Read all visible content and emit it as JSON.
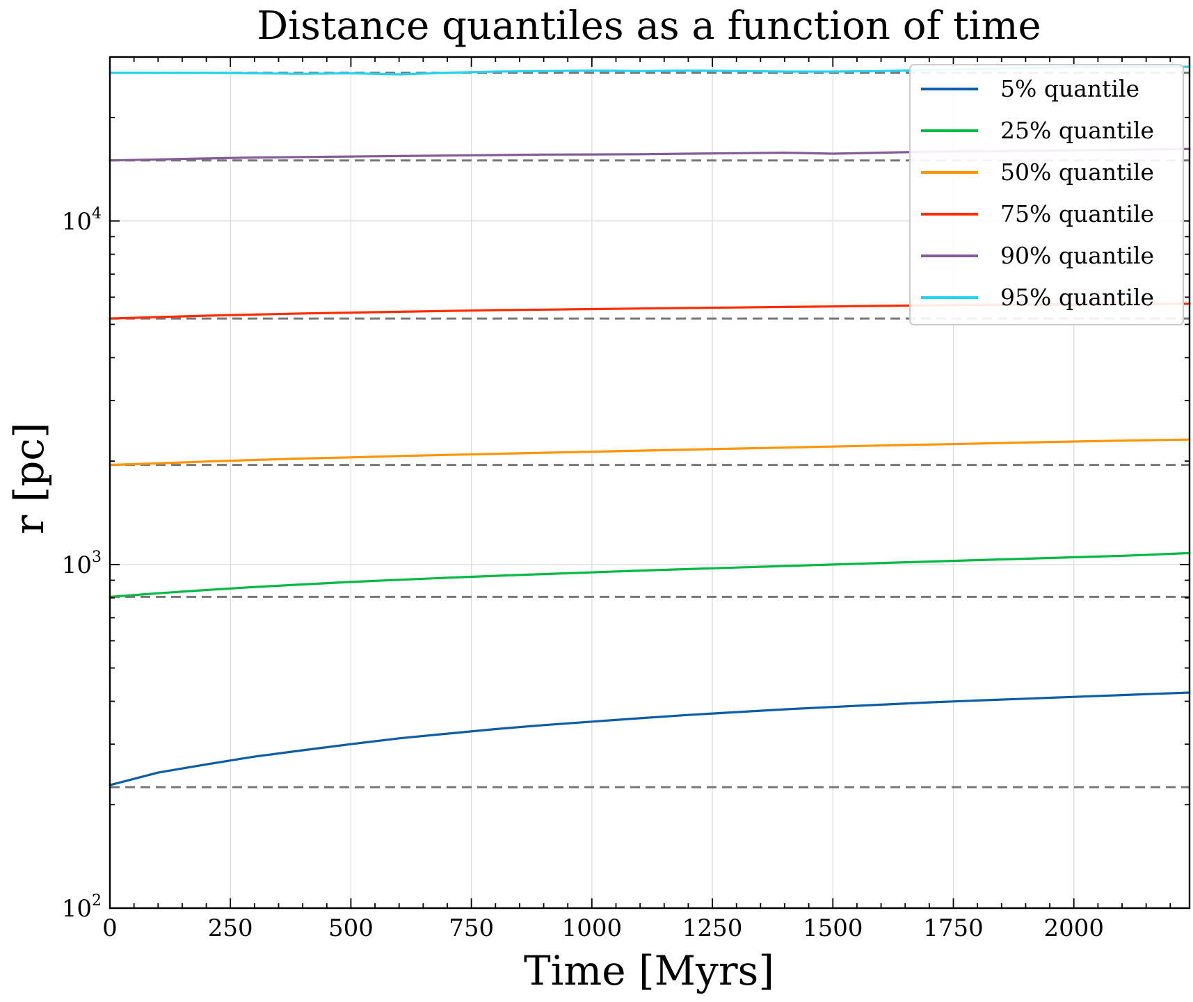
{
  "chart_data": {
    "type": "line",
    "title": "Distance quantiles as a function of time",
    "xlabel": "Time [Myrs]",
    "ylabel": "r [pc]",
    "xlim": [
      0,
      2240
    ],
    "ylim": [
      100,
      30000
    ],
    "yscale": "log",
    "grid": true,
    "legend_position": "top-right",
    "x_ticks": [
      "0",
      "250",
      "500",
      "750",
      "1000",
      "1250",
      "1500",
      "1750",
      "2000"
    ],
    "x_tick_values": [
      0,
      250,
      500,
      750,
      1000,
      1250,
      1500,
      1750,
      2000
    ],
    "y_ticks": [
      {
        "value": 100,
        "base": "10",
        "exp": "2"
      },
      {
        "value": 1000,
        "base": "10",
        "exp": "3"
      },
      {
        "value": 10000,
        "base": "10",
        "exp": "4"
      }
    ],
    "reference_lines": [
      {
        "color": "#777777",
        "y": 225
      },
      {
        "color": "#777777",
        "y": 805
      },
      {
        "color": "#777777",
        "y": 1950
      },
      {
        "color": "#777777",
        "y": 5200
      },
      {
        "color": "#777777",
        "y": 15000
      },
      {
        "color": "#777777",
        "y": 27000
      }
    ],
    "series": [
      {
        "name": "5% quantile",
        "color": "#0C5DA5",
        "x": [
          0,
          100,
          200,
          300,
          400,
          500,
          600,
          700,
          800,
          900,
          1000,
          1100,
          1200,
          1300,
          1400,
          1500,
          1600,
          1700,
          1800,
          1900,
          2000,
          2100,
          2240
        ],
        "y": [
          228,
          248,
          262,
          276,
          288,
          300,
          312,
          322,
          332,
          341,
          349,
          357,
          365,
          372,
          379,
          385,
          391,
          397,
          402,
          407,
          412,
          417,
          424
        ]
      },
      {
        "name": "25% quantile",
        "color": "#00B945",
        "x": [
          0,
          100,
          200,
          300,
          400,
          500,
          600,
          700,
          800,
          900,
          1000,
          1100,
          1200,
          1300,
          1400,
          1500,
          1600,
          1700,
          1800,
          1900,
          2000,
          2100,
          2240
        ],
        "y": [
          805,
          825,
          843,
          860,
          875,
          890,
          903,
          915,
          927,
          938,
          949,
          960,
          970,
          980,
          990,
          1000,
          1010,
          1020,
          1030,
          1040,
          1050,
          1060,
          1080
        ]
      },
      {
        "name": "50% quantile",
        "color": "#FF9500",
        "x": [
          0,
          100,
          200,
          300,
          400,
          500,
          600,
          700,
          800,
          900,
          1000,
          1100,
          1200,
          1300,
          1400,
          1500,
          1600,
          1700,
          1800,
          1900,
          2000,
          2100,
          2240
        ],
        "y": [
          1950,
          1970,
          1995,
          2015,
          2035,
          2050,
          2070,
          2085,
          2100,
          2115,
          2130,
          2145,
          2160,
          2175,
          2190,
          2205,
          2220,
          2235,
          2250,
          2265,
          2280,
          2295,
          2310
        ]
      },
      {
        "name": "75% quantile",
        "color": "#FF2C00",
        "x": [
          0,
          100,
          200,
          300,
          400,
          500,
          600,
          700,
          800,
          900,
          1000,
          1100,
          1200,
          1300,
          1400,
          1500,
          1600,
          1700,
          1800,
          1900,
          2000,
          2100,
          2240
        ],
        "y": [
          5200,
          5250,
          5300,
          5340,
          5380,
          5410,
          5440,
          5470,
          5500,
          5520,
          5540,
          5560,
          5580,
          5600,
          5620,
          5640,
          5660,
          5680,
          5700,
          5710,
          5720,
          5730,
          5740
        ]
      },
      {
        "name": "90% quantile",
        "color": "#845B97",
        "x": [
          0,
          100,
          200,
          300,
          400,
          500,
          600,
          700,
          800,
          900,
          1000,
          1100,
          1200,
          1300,
          1400,
          1500,
          1600,
          1700,
          1800,
          1900,
          2000,
          2100,
          2240
        ],
        "y": [
          15000,
          15100,
          15200,
          15300,
          15350,
          15400,
          15450,
          15500,
          15550,
          15600,
          15620,
          15640,
          15700,
          15750,
          15800,
          15700,
          15800,
          15900,
          15950,
          16000,
          16050,
          16100,
          16200
        ]
      },
      {
        "name": "95% quantile",
        "color": "#24D3F0",
        "x": [
          0,
          100,
          200,
          300,
          400,
          500,
          600,
          700,
          800,
          900,
          1000,
          1100,
          1200,
          1300,
          1400,
          1500,
          1600,
          1700,
          1800,
          1900,
          2000,
          2100,
          2240
        ],
        "y": [
          27000,
          27000,
          27000,
          26900,
          26800,
          26900,
          26700,
          27000,
          27200,
          27300,
          27400,
          27300,
          27400,
          27300,
          27200,
          27200,
          27300,
          27500,
          27700,
          27900,
          28000,
          28000,
          28100
        ]
      }
    ]
  }
}
